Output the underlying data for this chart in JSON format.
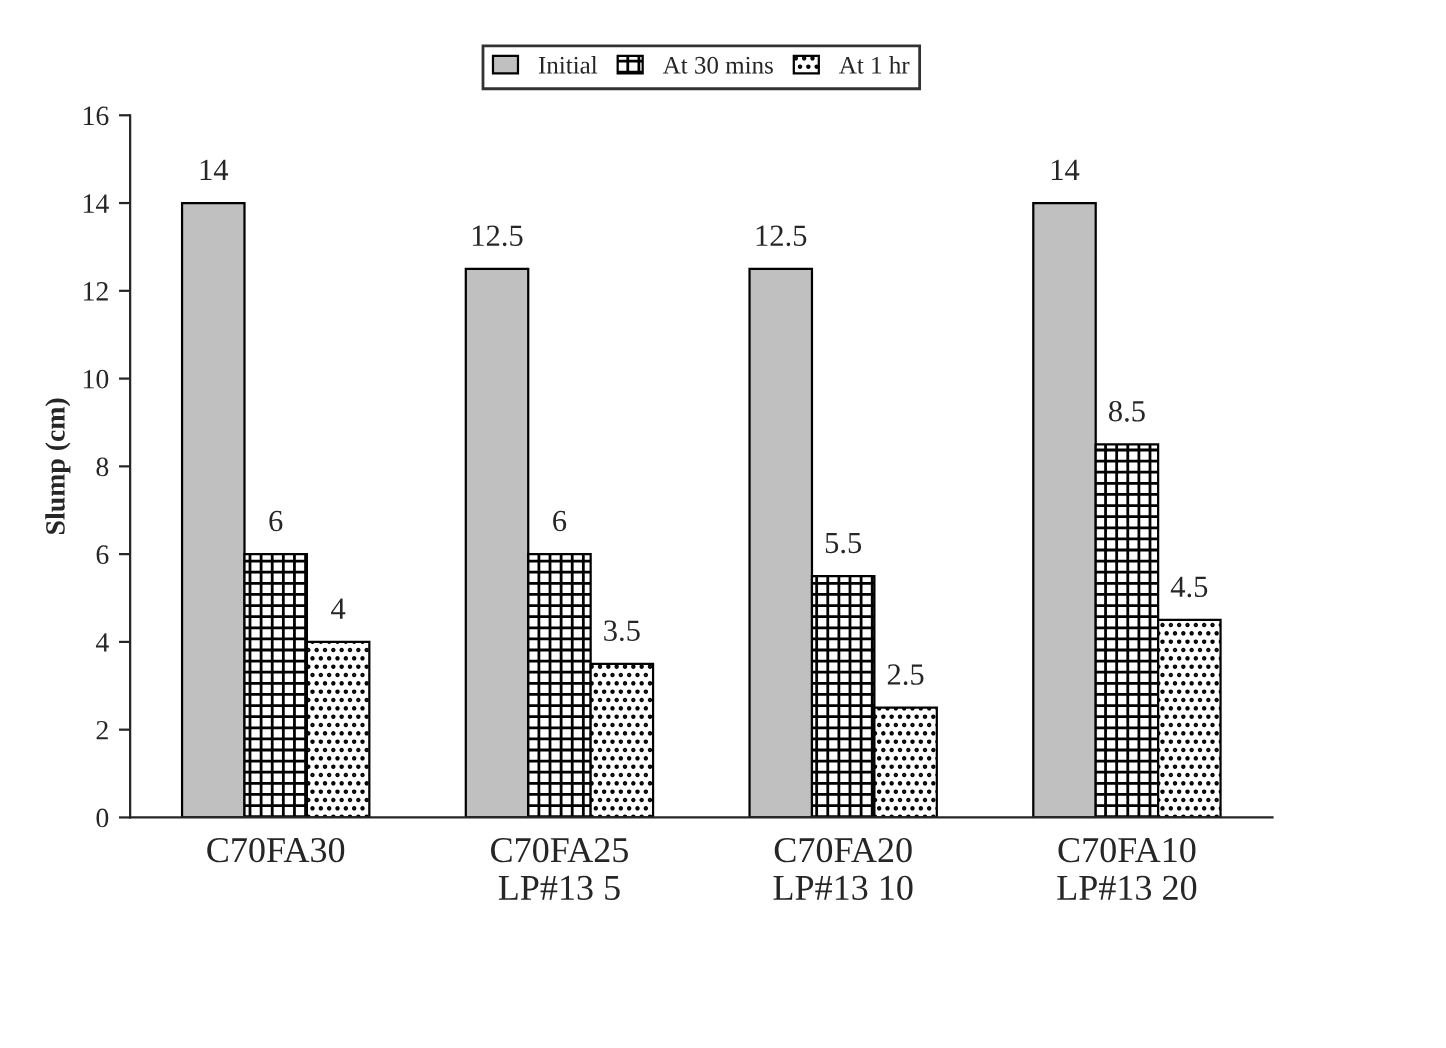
{
  "chart_data": {
    "type": "bar",
    "ylabel": "Slump (cm)",
    "categories": [
      "C70FA30",
      "C70FA25\nLP#13 5",
      "C70FA20\nLP#13 10",
      "C70FA10\nLP#13 20"
    ],
    "series": [
      {
        "name": "Initial",
        "color": "#c0c0c0",
        "values": [
          14,
          12.5,
          12.5,
          14
        ]
      },
      {
        "name": "At 30 mins",
        "color": "#000000",
        "values": [
          6,
          6,
          5.5,
          8.5
        ]
      },
      {
        "name": "At 1 hr",
        "color": "#000000",
        "values": [
          4,
          3.5,
          2.5,
          4.5
        ]
      }
    ],
    "ylim": [
      0,
      16
    ],
    "yticks": [
      0,
      2,
      4,
      6,
      8,
      10,
      12,
      14,
      16
    ],
    "data_labels": true,
    "legend": "top",
    "grid": false
  }
}
